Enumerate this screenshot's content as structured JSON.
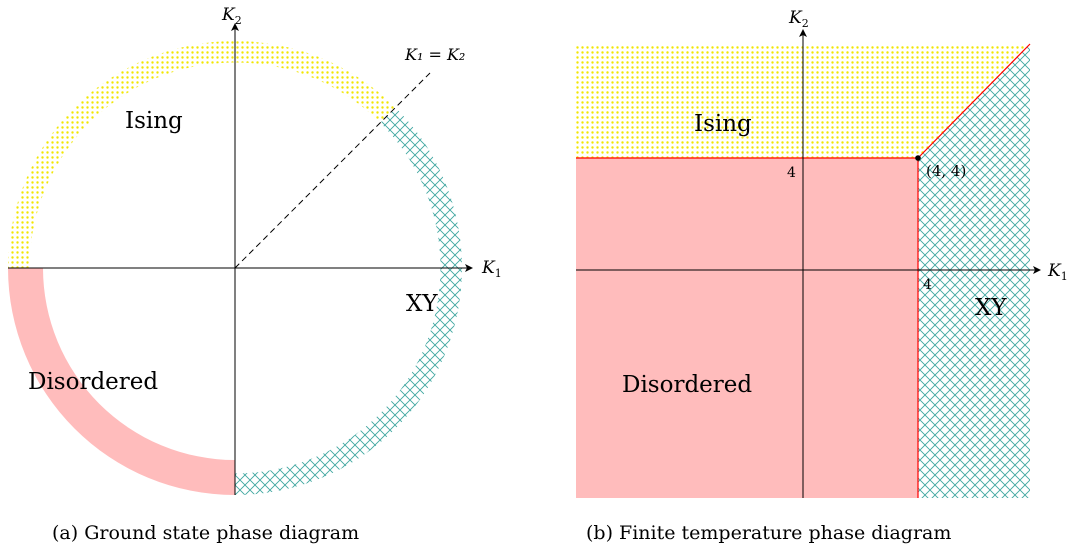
{
  "colors": {
    "ising": "#ffff00",
    "xy": "#3fa6a0",
    "disordered": "#ffbcbc",
    "boundary": "#ff0000",
    "axes": "#000000"
  },
  "panel_a": {
    "caption": "(a) Ground state phase diagram",
    "axis_x": {
      "symbol": "K",
      "sub": "1"
    },
    "axis_y": {
      "symbol": "K",
      "sub": "2"
    },
    "diagonal_label": "K₁ = K₂",
    "phases": {
      "ising": "Ising",
      "xy": "XY",
      "disordered": "Disordered"
    },
    "fills": {
      "ising": "dots",
      "xy": "crosshatch",
      "disordered": "solid"
    }
  },
  "panel_b": {
    "caption": "(b) Finite temperature phase diagram",
    "axis_x": {
      "symbol": "K",
      "sub": "1"
    },
    "axis_y": {
      "symbol": "K",
      "sub": "2"
    },
    "tick_x": "4",
    "tick_y": "4",
    "point_label": "(4, 4)",
    "phases": {
      "ising": "Ising",
      "xy": "XY",
      "disordered": "Disordered"
    },
    "fills": {
      "ising": "dots",
      "xy": "crosshatch",
      "disordered": "solid"
    }
  }
}
